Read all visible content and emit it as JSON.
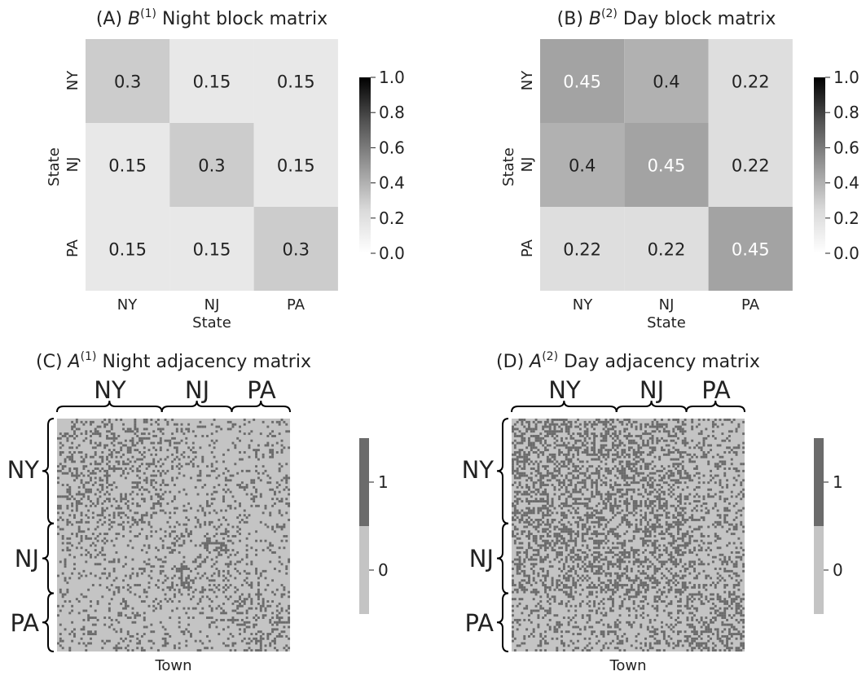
{
  "chart_data": [
    {
      "id": "A",
      "type": "heatmap",
      "title_prefix": "(A) ",
      "title_symbol": "B",
      "title_sup": "(1)",
      "title_rest": " Night block matrix",
      "title": "(A) B(1) Night block matrix",
      "xlabel": "State",
      "ylabel": "State",
      "x_categories": [
        "NY",
        "NJ",
        "PA"
      ],
      "y_categories": [
        "NY",
        "NJ",
        "PA"
      ],
      "values": [
        [
          0.3,
          0.15,
          0.15
        ],
        [
          0.15,
          0.3,
          0.15
        ],
        [
          0.15,
          0.15,
          0.3
        ]
      ],
      "labels": [
        [
          "0.3",
          "0.15",
          "0.15"
        ],
        [
          "0.15",
          "0.3",
          "0.15"
        ],
        [
          "0.15",
          "0.15",
          "0.3"
        ]
      ],
      "colorbar": {
        "range": [
          0,
          1
        ],
        "cmap": "Greys",
        "ticks": [
          "0.0",
          "0.2",
          "0.4",
          "0.6",
          "0.8",
          "1.0"
        ]
      }
    },
    {
      "id": "B",
      "type": "heatmap",
      "title_prefix": "(B) ",
      "title_symbol": "B",
      "title_sup": "(2)",
      "title_rest": " Day block matrix",
      "title": "(B) B(2) Day block matrix",
      "xlabel": "State",
      "ylabel": "State",
      "x_categories": [
        "NY",
        "NJ",
        "PA"
      ],
      "y_categories": [
        "NY",
        "NJ",
        "PA"
      ],
      "values": [
        [
          0.45,
          0.4,
          0.22
        ],
        [
          0.4,
          0.45,
          0.22
        ],
        [
          0.22,
          0.22,
          0.45
        ]
      ],
      "labels": [
        [
          "0.45",
          "0.4",
          "0.22"
        ],
        [
          "0.4",
          "0.45",
          "0.22"
        ],
        [
          "0.22",
          "0.22",
          "0.45"
        ]
      ],
      "colorbar": {
        "range": [
          0,
          1
        ],
        "cmap": "Greys",
        "ticks": [
          "0.0",
          "0.2",
          "0.4",
          "0.6",
          "0.8",
          "1.0"
        ]
      }
    },
    {
      "id": "C",
      "type": "heatmap",
      "title_prefix": "(C) ",
      "title_symbol": "A",
      "title_sup": "(1)",
      "title_rest": " Night adjacency matrix",
      "title": "(C) A(1) Night adjacency matrix",
      "xlabel": "Town",
      "groups": [
        "NY",
        "NJ",
        "PA"
      ],
      "group_sizes": [
        45,
        30,
        25
      ],
      "n_nodes": 100,
      "block_probabilities": [
        [
          0.3,
          0.15,
          0.15
        ],
        [
          0.15,
          0.3,
          0.15
        ],
        [
          0.15,
          0.15,
          0.3
        ]
      ],
      "values_note": "binary 0/1 matrix sampled from block probabilities",
      "colorbar": {
        "ticks": [
          "0",
          "1"
        ],
        "colors": {
          "0": "#c4c4c4",
          "1": "#6b6b6b"
        }
      }
    },
    {
      "id": "D",
      "type": "heatmap",
      "title_prefix": "(D) ",
      "title_symbol": "A",
      "title_sup": "(2)",
      "title_rest": " Day adjacency matrix",
      "title": "(D) A(2) Day adjacency matrix",
      "xlabel": "Town",
      "groups": [
        "NY",
        "NJ",
        "PA"
      ],
      "group_sizes": [
        45,
        30,
        25
      ],
      "n_nodes": 100,
      "block_probabilities": [
        [
          0.45,
          0.4,
          0.22
        ],
        [
          0.4,
          0.45,
          0.22
        ],
        [
          0.22,
          0.22,
          0.45
        ]
      ],
      "values_note": "binary 0/1 matrix sampled from block probabilities",
      "colorbar": {
        "ticks": [
          "0",
          "1"
        ],
        "colors": {
          "0": "#c4c4c4",
          "1": "#6b6b6b"
        }
      }
    }
  ]
}
